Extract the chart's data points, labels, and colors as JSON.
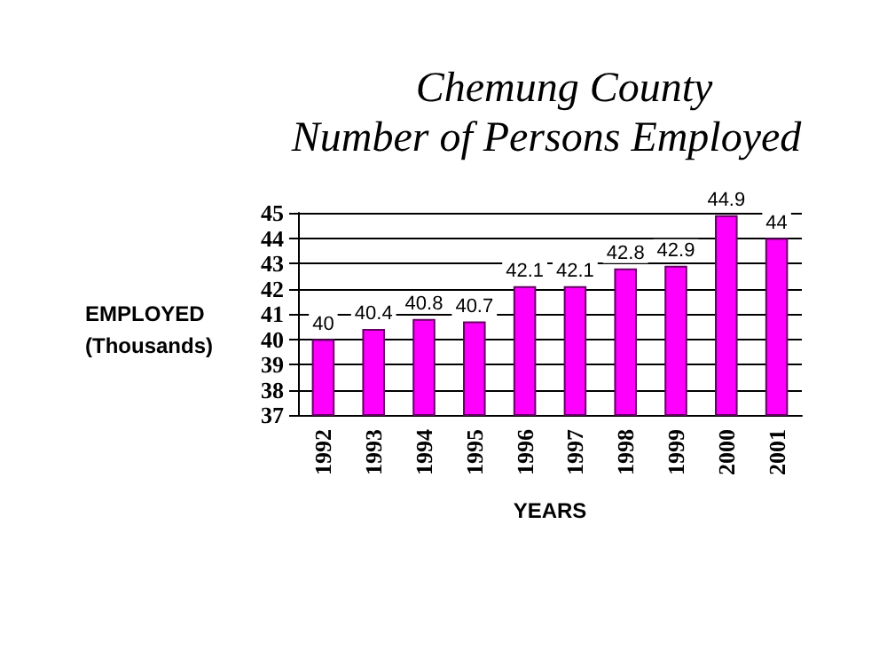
{
  "chart_data": {
    "type": "bar",
    "title": "Chemung County",
    "subtitle": "Number of Persons Employed",
    "xlabel": "YEARS",
    "ylabel": "EMPLOYED\n(Thousands)",
    "categories": [
      "1992",
      "1993",
      "1994",
      "1995",
      "1996",
      "1997",
      "1998",
      "1999",
      "2000",
      "2001"
    ],
    "values": [
      40,
      40.4,
      40.8,
      40.7,
      42.1,
      42.1,
      42.8,
      42.9,
      44.9,
      44
    ],
    "color": "#ff00ff",
    "ylim": [
      37,
      45
    ],
    "yticks": [
      37,
      38,
      39,
      40,
      41,
      42,
      43,
      44,
      45
    ],
    "grid": "y",
    "data_labels": true
  }
}
